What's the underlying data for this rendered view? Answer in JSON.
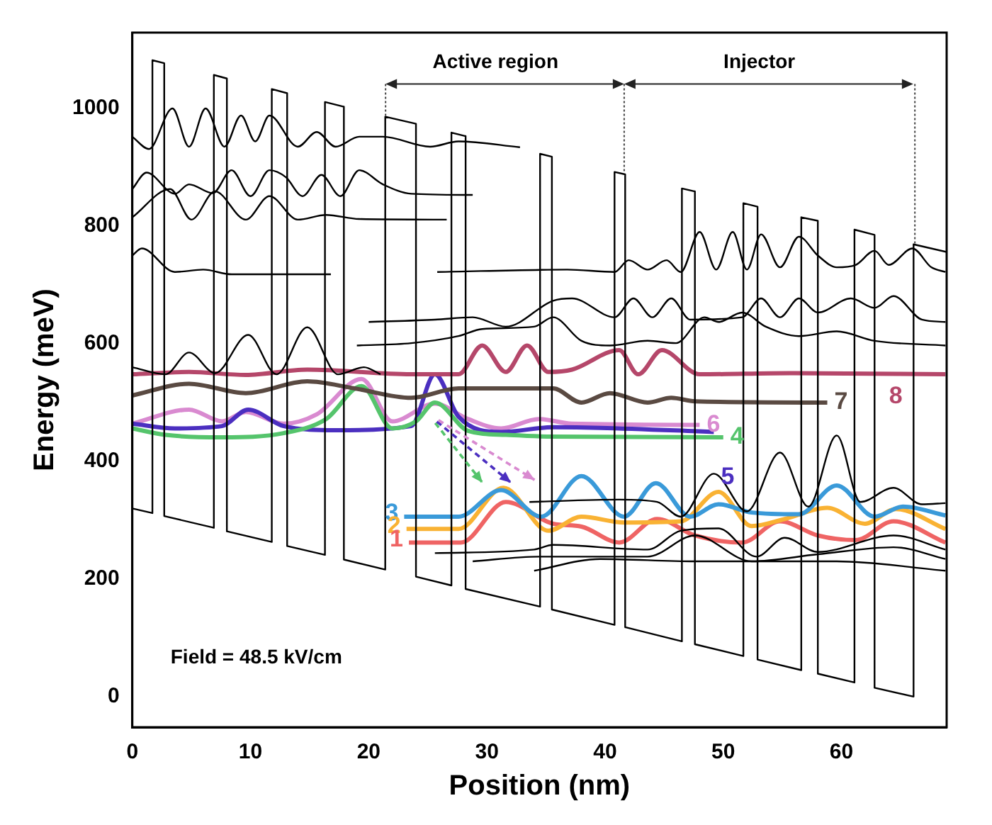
{
  "chart_data": {
    "type": "line",
    "xlabel": "Position (nm)",
    "ylabel": "Energy (meV)",
    "xlim": [
      0,
      68.9
    ],
    "ylim": [
      -52,
      1129
    ],
    "xticks": [
      0,
      10,
      20,
      30,
      40,
      50,
      60
    ],
    "yticks": [
      0,
      200,
      400,
      600,
      800,
      1000
    ],
    "grid": false,
    "legend": false,
    "marker": "none",
    "annotations": [
      "Active region",
      "Injector",
      "Field = 48.5 kV/cm"
    ],
    "series": [
      {
        "color": "#000000",
        "x": [
          0,
          1.7,
          1.7,
          2.7,
          2.7,
          6.9,
          6.9,
          8.0,
          8.0,
          11.8,
          11.8,
          13.1,
          13.1,
          16.3,
          16.3,
          17.9,
          17.9,
          21.4,
          21.4,
          24.0,
          24.0,
          27.0,
          27.0,
          28.2,
          28.2,
          34.5,
          34.5,
          35.5,
          35.5,
          40.8,
          40.8,
          41.7,
          41.7,
          46.5,
          46.5,
          47.6,
          47.6,
          51.7,
          51.7,
          52.9,
          52.9,
          56.6,
          56.6,
          58.0,
          58.0,
          61.1,
          61.1,
          62.8,
          62.8,
          66.1,
          66.1,
          68.9
        ],
        "values": [
          320,
          312,
          1082,
          1077,
          307,
          287,
          1057,
          1051,
          281,
          263,
          1033,
          1026,
          256,
          241,
          1011,
          1003,
          233,
          216,
          986,
          974,
          204,
          189,
          959,
          953,
          183,
          153,
          923,
          918,
          148,
          122,
          892,
          888,
          118,
          94,
          864,
          859,
          89,
          69,
          839,
          833,
          63,
          45,
          815,
          809,
          39,
          24,
          794,
          785,
          15,
          0,
          769,
          756
        ]
      },
      {
        "color": "#000000",
        "x": [
          0,
          1.4,
          3.4,
          4.8,
          6.2,
          7.8,
          9.2,
          10.4,
          11.6,
          14,
          15.6,
          17.2,
          19.2,
          21.2,
          25.2,
          27.6,
          32.8
        ],
        "values": [
          952,
          931,
          1000,
          935,
          1000,
          935,
          988,
          944,
          988,
          935,
          960,
          935,
          952,
          952,
          935,
          944,
          934
        ]
      },
      {
        "color": "#000000",
        "x": [
          0,
          1.2,
          3.6,
          4.8,
          6.8,
          8.4,
          10,
          11.6,
          13,
          14.4,
          16,
          17.6,
          19.2,
          21.2,
          23.6,
          28.8
        ],
        "values": [
          863,
          891,
          855,
          871,
          856,
          895,
          851,
          895,
          883,
          851,
          887,
          851,
          895,
          871,
          855,
          853
        ]
      },
      {
        "color": "#000000",
        "x": [
          0,
          3.2,
          5,
          7,
          9.6,
          11.6,
          14,
          16.4,
          19.2,
          26.6
        ],
        "values": [
          815,
          863,
          811,
          859,
          811,
          851,
          811,
          819,
          812,
          811
        ]
      },
      {
        "color": "#000000",
        "x": [
          0,
          0.8,
          3.6,
          6,
          8.4,
          16.8
        ],
        "values": [
          750,
          762,
          722,
          726,
          718,
          718
        ]
      },
      {
        "color": "#000000",
        "x": [
          25.8,
          36.8,
          40.8,
          42,
          43.6,
          45.2,
          46.4,
          48,
          49.4,
          50.8,
          52,
          53.2,
          54.8,
          56.4,
          58,
          59.6,
          61.2,
          62.8,
          64,
          66,
          67.6,
          68.8
        ],
        "values": [
          722,
          726,
          722,
          742,
          726,
          742,
          722,
          790,
          726,
          790,
          726,
          786,
          730,
          782,
          750,
          730,
          734,
          758,
          734,
          762,
          730,
          722
        ]
      },
      {
        "color": "#000000",
        "x": [
          20,
          25.6,
          28.8,
          31.6,
          35.6,
          37.2,
          40.8,
          42.4,
          44,
          45.6,
          47.2,
          51.6,
          53.2,
          54.8,
          56.4,
          58,
          60.8,
          62.8,
          64.4,
          66.8,
          68.8
        ],
        "values": [
          637,
          641,
          645,
          629,
          673,
          677,
          645,
          677,
          645,
          677,
          641,
          645,
          677,
          645,
          677,
          653,
          677,
          661,
          681,
          641,
          637
        ]
      },
      {
        "color": "#000000",
        "x": [
          19,
          23.6,
          27.6,
          29.6,
          34,
          35.6,
          38,
          40.4,
          43.6,
          46,
          48.4,
          49.6,
          51.6,
          53.6,
          56.4,
          59.6,
          62.8,
          68.8
        ],
        "values": [
          597,
          601,
          613,
          625,
          629,
          645,
          605,
          597,
          605,
          601,
          645,
          637,
          653,
          629,
          613,
          621,
          605,
          597
        ]
      },
      {
        "color": "#000000",
        "x": [
          0,
          2.8,
          4.8,
          7,
          9.8,
          12.2,
          14.8,
          17.4,
          19.6,
          21
        ],
        "values": [
          560,
          548,
          585,
          550,
          615,
          548,
          628,
          548,
          560,
          548
        ]
      },
      {
        "color": "#000000",
        "x": [
          33.6,
          41.2,
          44.4,
          46.4,
          49.2,
          52,
          54.8,
          57.2,
          59.6,
          61.6,
          64.4,
          66.8,
          68.8
        ],
        "values": [
          331,
          335,
          331,
          306,
          379,
          315,
          415,
          323,
          444,
          331,
          355,
          327,
          329
        ]
      },
      {
        "color": "#000000",
        "x": [
          25.6,
          34,
          35.6,
          43.6,
          46.4,
          49.6,
          52.8,
          55.2,
          58,
          64.4,
          68.8
        ],
        "values": [
          244,
          250,
          258,
          250,
          282,
          286,
          238,
          270,
          246,
          274,
          250
        ]
      },
      {
        "color": "#000000",
        "x": [
          28.8,
          34.4,
          43.6,
          47.6,
          52.4,
          58,
          64.4,
          68.8
        ],
        "values": [
          230,
          238,
          238,
          274,
          230,
          242,
          254,
          234
        ]
      },
      {
        "color": "#000000",
        "x": [
          34,
          39.6,
          47.6,
          59.6,
          68.8
        ],
        "values": [
          214,
          234,
          230,
          230,
          214
        ]
      },
      {
        "name": "8",
        "color": "#b5476a",
        "x": [
          0,
          4.8,
          9.6,
          14.8,
          23.6,
          27.6,
          29.6,
          31.6,
          33.4,
          35.2,
          37.2,
          41.2,
          42.8,
          44.8,
          48,
          55.6,
          68.8
        ],
        "values": [
          548,
          552,
          547,
          556,
          548,
          548,
          597,
          552,
          597,
          552,
          556,
          589,
          548,
          589,
          548,
          550,
          548
        ]
      },
      {
        "name": "7",
        "color": "#5a4a42",
        "x": [
          0,
          4.8,
          9.6,
          14.8,
          18.8,
          23.6,
          27.6,
          33.2,
          35.6,
          38,
          40.4,
          43.6,
          45.6,
          47.6,
          58.8
        ],
        "values": [
          512,
          532,
          516,
          536,
          524,
          508,
          524,
          524,
          524,
          500,
          516,
          500,
          508,
          502,
          500
        ]
      },
      {
        "name": "4",
        "color": "#55c46c",
        "x": [
          0,
          2.8,
          7.6,
          12.8,
          16.4,
          19.4,
          22,
          24,
          25.6,
          28.4,
          31.6,
          35.6,
          50
        ],
        "values": [
          456,
          445,
          441,
          448,
          472,
          528,
          456,
          468,
          500,
          452,
          445,
          442,
          441
        ]
      },
      {
        "name": "5",
        "color": "#4b2fc0",
        "x": [
          0,
          3.6,
          7.6,
          9.8,
          12.8,
          17.2,
          23.6,
          25.6,
          27.6,
          31.2,
          35.6,
          39.6,
          49.2
        ],
        "values": [
          464,
          456,
          460,
          488,
          460,
          453,
          460,
          548,
          476,
          450,
          458,
          457,
          450
        ]
      },
      {
        "name": "6",
        "color": "#d98ad0",
        "x": [
          0,
          4.8,
          7.6,
          9.6,
          12.8,
          15.6,
          19.4,
          22,
          25.6,
          28.4,
          31.2,
          34.4,
          37.2,
          48
        ],
        "values": [
          464,
          488,
          468,
          484,
          464,
          480,
          540,
          468,
          498,
          472,
          456,
          472,
          464,
          462
        ]
      },
      {
        "name": "3",
        "color": "#3a9ad9",
        "x": [
          23,
          27.6,
          31.2,
          34.6,
          38,
          41.6,
          44.3,
          47.2,
          49.6,
          52.4,
          56.4,
          59.6,
          62.8,
          65.2,
          68.8
        ],
        "values": [
          306,
          306,
          351,
          306,
          375,
          306,
          363,
          306,
          327,
          313,
          310,
          359,
          306,
          323,
          308
        ]
      },
      {
        "name": "2",
        "color": "#f9b233",
        "x": [
          23.2,
          27.6,
          31.4,
          35.2,
          38,
          41.6,
          46.4,
          49.6,
          52.4,
          55.2,
          58.8,
          62,
          64.6,
          68.8
        ],
        "values": [
          285,
          285,
          355,
          282,
          306,
          296,
          298,
          348,
          290,
          302,
          321,
          294,
          319,
          285
        ]
      },
      {
        "name": "1",
        "color": "#ef6464",
        "x": [
          23.4,
          27.8,
          31.6,
          35.6,
          38,
          41.2,
          44.4,
          47.6,
          51.6,
          54.8,
          58,
          61.2,
          64.4,
          68.8
        ],
        "values": [
          262,
          262,
          331,
          294,
          289,
          262,
          302,
          274,
          262,
          298,
          274,
          266,
          298,
          262
        ]
      }
    ]
  }
}
